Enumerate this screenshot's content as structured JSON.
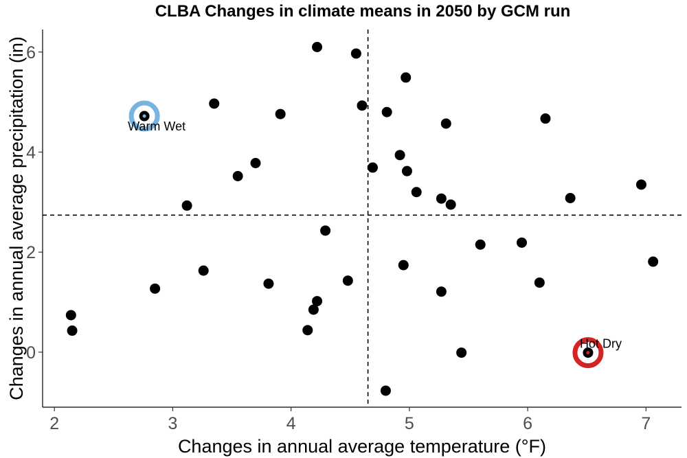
{
  "chart_data": {
    "type": "scatter",
    "title": "CLBA Changes in climate means in 2050 by GCM run",
    "xlabel": "Changes in annual average temperature (°F)",
    "ylabel": "Changes in annual average precipitation (in)",
    "xlim": [
      1.9,
      7.3
    ],
    "ylim": [
      -1.1,
      6.45
    ],
    "x_ticks": [
      2,
      3,
      4,
      5,
      6,
      7
    ],
    "y_ticks": [
      0,
      2,
      4,
      6
    ],
    "grid": false,
    "reference_lines": {
      "x": 4.65,
      "y": 2.74
    },
    "points": [
      {
        "x": 2.14,
        "y": 0.74
      },
      {
        "x": 2.15,
        "y": 0.43
      },
      {
        "x": 2.76,
        "y": 4.72
      },
      {
        "x": 2.85,
        "y": 1.27
      },
      {
        "x": 3.12,
        "y": 2.93
      },
      {
        "x": 3.26,
        "y": 1.63
      },
      {
        "x": 3.35,
        "y": 4.97
      },
      {
        "x": 3.55,
        "y": 3.52
      },
      {
        "x": 3.7,
        "y": 3.78
      },
      {
        "x": 3.81,
        "y": 1.37
      },
      {
        "x": 3.91,
        "y": 4.76
      },
      {
        "x": 4.14,
        "y": 0.44
      },
      {
        "x": 4.19,
        "y": 0.85
      },
      {
        "x": 4.22,
        "y": 1.02
      },
      {
        "x": 4.22,
        "y": 6.1
      },
      {
        "x": 4.29,
        "y": 2.43
      },
      {
        "x": 4.48,
        "y": 1.43
      },
      {
        "x": 4.55,
        "y": 5.97
      },
      {
        "x": 4.6,
        "y": 4.93
      },
      {
        "x": 4.69,
        "y": 3.69
      },
      {
        "x": 4.8,
        "y": -0.77
      },
      {
        "x": 4.81,
        "y": 4.8
      },
      {
        "x": 4.92,
        "y": 3.94
      },
      {
        "x": 4.95,
        "y": 1.74
      },
      {
        "x": 4.97,
        "y": 5.49
      },
      {
        "x": 4.98,
        "y": 3.62
      },
      {
        "x": 5.06,
        "y": 3.2
      },
      {
        "x": 5.27,
        "y": 3.07
      },
      {
        "x": 5.27,
        "y": 1.21
      },
      {
        "x": 5.31,
        "y": 4.57
      },
      {
        "x": 5.35,
        "y": 2.95
      },
      {
        "x": 5.44,
        "y": -0.01
      },
      {
        "x": 5.6,
        "y": 2.15
      },
      {
        "x": 5.95,
        "y": 2.19
      },
      {
        "x": 6.1,
        "y": 1.39
      },
      {
        "x": 6.15,
        "y": 4.67
      },
      {
        "x": 6.36,
        "y": 3.08
      },
      {
        "x": 6.51,
        "y": -0.01
      },
      {
        "x": 6.96,
        "y": 3.35
      },
      {
        "x": 7.06,
        "y": 1.81
      }
    ],
    "highlights": [
      {
        "label": "Warm Wet",
        "x": 2.76,
        "y": 4.72,
        "color": "#78b4e0"
      },
      {
        "label": "Hot Dry",
        "x": 6.51,
        "y": -0.01,
        "color": "#d42323"
      }
    ],
    "colors": {
      "points": "#000000",
      "reference_line": "#000000",
      "axis": "#000000",
      "tick_label": "#4d4d4d"
    }
  }
}
